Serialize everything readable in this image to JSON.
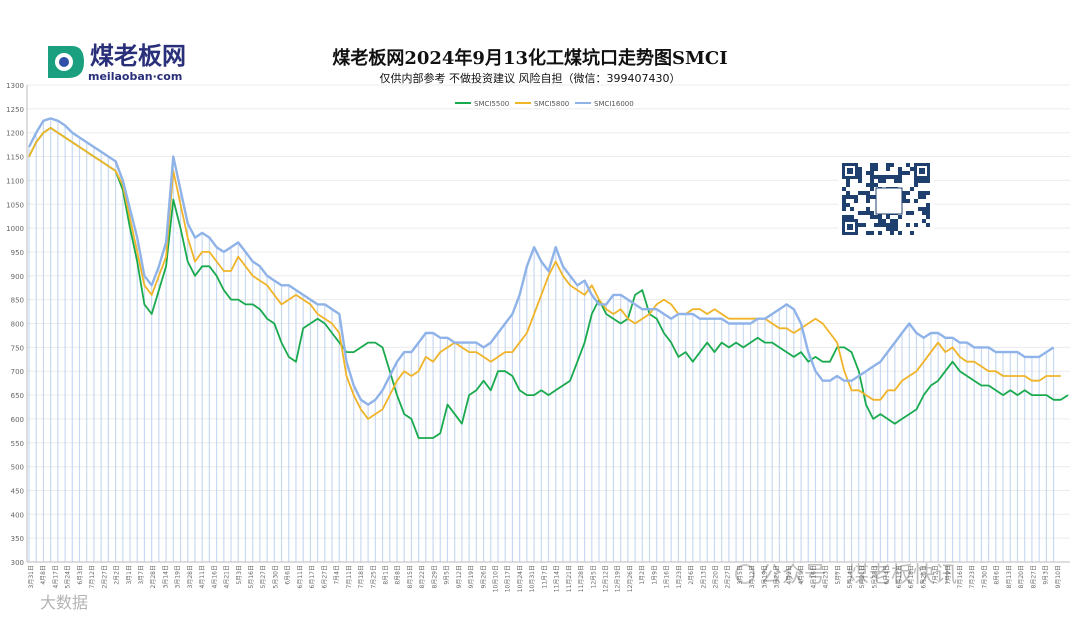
{
  "logo": {
    "name": "煤老板网",
    "domain": "meilaoban·com"
  },
  "chart_data": {
    "type": "line",
    "title": "煤老板网2024年9月13化工煤坑口走势图SMCI",
    "subtitle": "仅供内部参考 不做投资建议 风险自担（微信：399407430）",
    "xlabel": "",
    "ylabel": "",
    "ylim": [
      300,
      1300
    ],
    "yticks": [
      300,
      350,
      400,
      450,
      500,
      550,
      600,
      650,
      700,
      750,
      800,
      850,
      900,
      950,
      1000,
      1050,
      1100,
      1150,
      1200,
      1250,
      1300
    ],
    "x_tick_labels": [
      "3月31日",
      "4月8日",
      "4月17日",
      "5月24日",
      "6月3日",
      "7月12日",
      "2月27日",
      "2月2日",
      "3月1日",
      "3月7日",
      "2月28日",
      "3月14日",
      "3月19日",
      "3月28日",
      "4月11日",
      "4月16日",
      "4月21日",
      "5月3日",
      "5月16日",
      "5月27日",
      "5月30日",
      "6月6日",
      "6月11日",
      "6月17日",
      "6月27日",
      "7月4日",
      "7月11日",
      "7月18日",
      "7月25日",
      "8月1日",
      "8月8日",
      "8月15日",
      "8月22日",
      "8月29日",
      "9月5日",
      "9月12日",
      "9月19日",
      "9月26日",
      "10月10日",
      "10月17日",
      "10月24日",
      "10月31日",
      "11月7日",
      "11月14日",
      "11月21日",
      "11月28日",
      "12月5日",
      "12月12日",
      "12月19日",
      "12月26日",
      "1月2日",
      "1月9日",
      "1月16日",
      "1月23日",
      "2月6日",
      "2月13日",
      "2月20日",
      "2月27日",
      "3月5日",
      "3月12日",
      "3月19日",
      "3月26日",
      "4月2日",
      "4月9日",
      "4月16日",
      "4月23日",
      "5月7日",
      "5月14日",
      "5月21日",
      "5月28日",
      "6月4日",
      "6月11日",
      "6月18日",
      "6月25日",
      "7月2日",
      "7月9日",
      "7月16日",
      "7月23日",
      "7月30日",
      "8月6日",
      "8月13日",
      "8月20日",
      "8月27日",
      "9月3日",
      "9月10日"
    ],
    "legend_position": "top-center",
    "series": [
      {
        "name": "SMCI5500",
        "color": "#1aaa4e",
        "values": [
          1150,
          1180,
          1200,
          1210,
          1200,
          1190,
          1180,
          1170,
          1160,
          1150,
          1140,
          1130,
          1120,
          1080,
          1000,
          930,
          840,
          820,
          870,
          920,
          1060,
          1000,
          930,
          900,
          920,
          920,
          900,
          870,
          850,
          850,
          840,
          840,
          830,
          810,
          800,
          760,
          730,
          720,
          790,
          800,
          810,
          800,
          780,
          760,
          740,
          740,
          750,
          760,
          760,
          750,
          700,
          650,
          610,
          600,
          560,
          560,
          560,
          570,
          630,
          610,
          590,
          650,
          660,
          680,
          660,
          700,
          700,
          690,
          660,
          650,
          650,
          660,
          650,
          660,
          670,
          680,
          720,
          760,
          820,
          850,
          820,
          810,
          800,
          810,
          860,
          870,
          820,
          810,
          780,
          760,
          730,
          740,
          720,
          740,
          760,
          740,
          760,
          750,
          760,
          750,
          760,
          770,
          760,
          760,
          750,
          740,
          730,
          740,
          720,
          730,
          720,
          720,
          750,
          750,
          740,
          700,
          630,
          600,
          610,
          600,
          590,
          600,
          610,
          620,
          650,
          670,
          680,
          700,
          720,
          700,
          690,
          680,
          670,
          670,
          660,
          650,
          660,
          650,
          660,
          650,
          650,
          650,
          640,
          640,
          650
        ]
      },
      {
        "name": "SMCI5800",
        "color": "#f0b429",
        "values": [
          1150,
          1180,
          1200,
          1210,
          1200,
          1190,
          1180,
          1170,
          1160,
          1150,
          1140,
          1130,
          1120,
          1090,
          1020,
          950,
          880,
          860,
          900,
          940,
          1120,
          1050,
          980,
          930,
          950,
          950,
          930,
          910,
          910,
          940,
          920,
          900,
          890,
          880,
          860,
          840,
          850,
          860,
          850,
          840,
          820,
          810,
          800,
          780,
          690,
          650,
          620,
          600,
          610,
          620,
          650,
          680,
          700,
          690,
          700,
          730,
          720,
          740,
          750,
          760,
          750,
          740,
          740,
          730,
          720,
          730,
          740,
          740,
          760,
          780,
          820,
          860,
          900,
          930,
          900,
          880,
          870,
          860,
          880,
          850,
          830,
          820,
          830,
          810,
          800,
          810,
          820,
          840,
          850,
          840,
          820,
          820,
          830,
          830,
          820,
          830,
          820,
          810,
          810,
          810,
          810,
          810,
          810,
          800,
          790,
          790,
          780,
          790,
          800,
          810,
          800,
          780,
          760,
          700,
          660,
          660,
          650,
          640,
          640,
          660,
          660,
          680,
          690,
          700,
          720,
          740,
          760,
          740,
          750,
          730,
          720,
          720,
          710,
          700,
          700,
          690,
          690,
          690,
          690,
          680,
          680,
          690,
          690,
          690
        ]
      },
      {
        "name": "SMCI16000",
        "color": "#8fb3e8",
        "values": [
          1170,
          1200,
          1225,
          1230,
          1225,
          1215,
          1200,
          1190,
          1180,
          1170,
          1160,
          1150,
          1140,
          1100,
          1040,
          980,
          900,
          880,
          920,
          970,
          1150,
          1080,
          1010,
          980,
          990,
          980,
          960,
          950,
          960,
          970,
          950,
          930,
          920,
          900,
          890,
          880,
          880,
          870,
          860,
          850,
          840,
          840,
          830,
          820,
          720,
          670,
          640,
          630,
          640,
          660,
          690,
          720,
          740,
          740,
          760,
          780,
          780,
          770,
          770,
          760,
          760,
          760,
          760,
          750,
          760,
          780,
          800,
          820,
          860,
          920,
          960,
          930,
          910,
          960,
          920,
          900,
          880,
          890,
          860,
          840,
          840,
          860,
          860,
          850,
          840,
          830,
          830,
          830,
          820,
          810,
          820,
          820,
          820,
          810,
          810,
          810,
          810,
          800,
          800,
          800,
          800,
          810,
          810,
          820,
          830,
          840,
          830,
          800,
          740,
          700,
          680,
          680,
          690,
          680,
          680,
          690,
          700,
          710,
          720,
          740,
          760,
          780,
          800,
          780,
          770,
          780,
          780,
          770,
          770,
          760,
          760,
          750,
          750,
          750,
          740,
          740,
          740,
          740,
          730,
          730,
          730,
          740,
          750
        ]
      }
    ]
  },
  "watermarks": [
    "公众号 · 煤老板快讯",
    "大数据"
  ]
}
